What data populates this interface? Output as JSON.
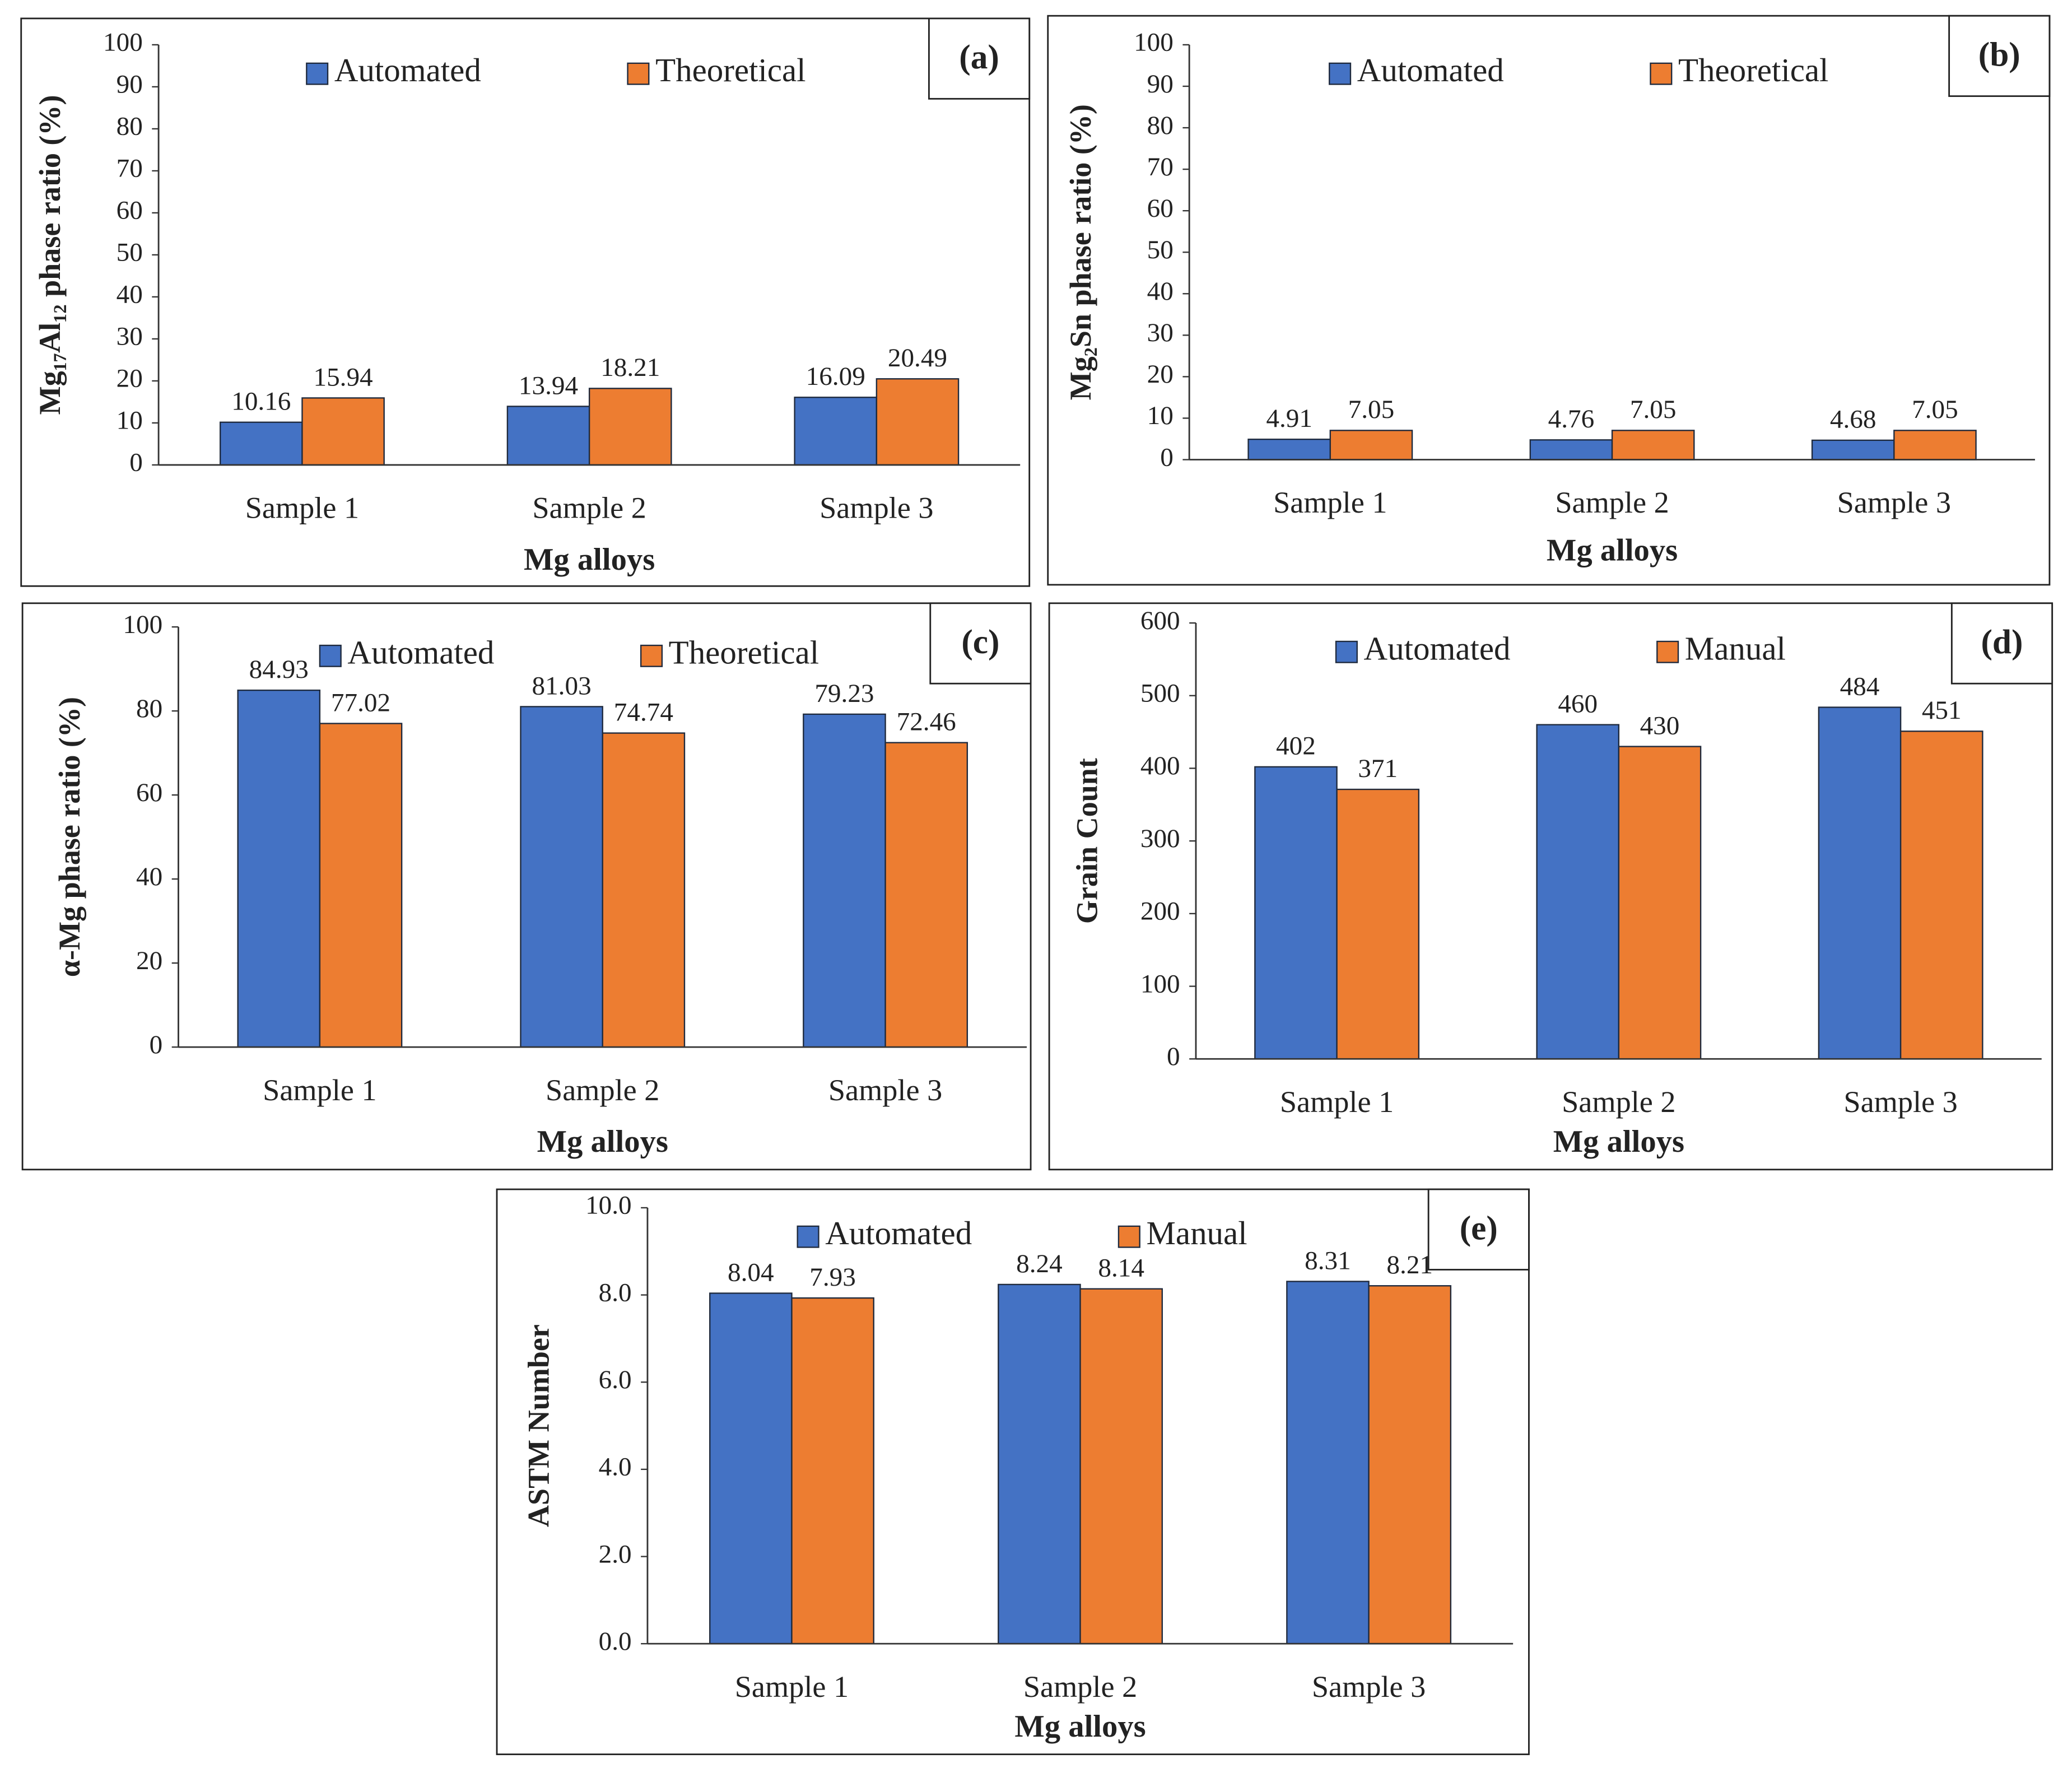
{
  "chart_data": [
    {
      "type": "bar",
      "panel_label": "(a)",
      "y_label": "Mg₁₇Al₁₂ phase ratio (%)",
      "x_label": "Mg alloys",
      "categories": [
        "Sample 1",
        "Sample 2",
        "Sample 3"
      ],
      "series": [
        {
          "name": "Automated",
          "color": "#4472c4",
          "values": [
            10.16,
            13.94,
            16.09
          ]
        },
        {
          "name": "Theoretical",
          "color": "#ed7d31",
          "values": [
            15.94,
            18.21,
            20.49
          ]
        }
      ],
      "ylim": [
        0,
        100
      ],
      "yticks": [
        0,
        10,
        20,
        30,
        40,
        50,
        60,
        70,
        80,
        90,
        100
      ]
    },
    {
      "type": "bar",
      "panel_label": "(b)",
      "y_label": "Mg₂Sn phase ratio (%)",
      "x_label": "Mg alloys",
      "categories": [
        "Sample 1",
        "Sample 2",
        "Sample 3"
      ],
      "series": [
        {
          "name": "Automated",
          "color": "#4472c4",
          "values": [
            4.91,
            4.76,
            4.68
          ]
        },
        {
          "name": "Theoretical",
          "color": "#ed7d31",
          "values": [
            7.05,
            7.05,
            7.05
          ]
        }
      ],
      "ylim": [
        0,
        100
      ],
      "yticks": [
        0,
        10,
        20,
        30,
        40,
        50,
        60,
        70,
        80,
        90,
        100
      ]
    },
    {
      "type": "bar",
      "panel_label": "(c)",
      "y_label": "α-Mg phase ratio (%)",
      "x_label": "Mg alloys",
      "categories": [
        "Sample 1",
        "Sample 2",
        "Sample 3"
      ],
      "series": [
        {
          "name": "Automated",
          "color": "#4472c4",
          "values": [
            84.93,
            81.03,
            79.23
          ]
        },
        {
          "name": "Theoretical",
          "color": "#ed7d31",
          "values": [
            77.02,
            74.74,
            72.46
          ]
        }
      ],
      "ylim": [
        0,
        100
      ],
      "yticks": [
        0,
        20,
        40,
        60,
        80,
        100
      ]
    },
    {
      "type": "bar",
      "panel_label": "(d)",
      "y_label": "Grain Count",
      "x_label": "Mg alloys",
      "categories": [
        "Sample 1",
        "Sample 2",
        "Sample 3"
      ],
      "series": [
        {
          "name": "Automated",
          "color": "#4472c4",
          "values": [
            402,
            460,
            484
          ]
        },
        {
          "name": "Manual",
          "color": "#ed7d31",
          "values": [
            371,
            430,
            451
          ]
        }
      ],
      "ylim": [
        0,
        600
      ],
      "yticks": [
        0,
        100,
        200,
        300,
        400,
        500,
        600
      ]
    },
    {
      "type": "bar",
      "panel_label": "(e)",
      "y_label": "ASTM Number",
      "x_label": "Mg alloys",
      "categories": [
        "Sample 1",
        "Sample 2",
        "Sample 3"
      ],
      "series": [
        {
          "name": "Automated",
          "color": "#4472c4",
          "values": [
            8.04,
            8.24,
            8.31
          ]
        },
        {
          "name": "Manual",
          "color": "#ed7d31",
          "values": [
            7.93,
            8.14,
            8.21
          ]
        }
      ],
      "ylim": [
        0,
        10
      ],
      "yticks": [
        {
          "value": 0,
          "label": "0.0"
        },
        {
          "value": 2,
          "label": "2.0"
        },
        {
          "value": 4,
          "label": "4.0"
        },
        {
          "value": 6,
          "label": "6.0"
        },
        {
          "value": 8,
          "label": "8.0"
        },
        {
          "value": 10,
          "label": "10.0"
        }
      ]
    }
  ]
}
